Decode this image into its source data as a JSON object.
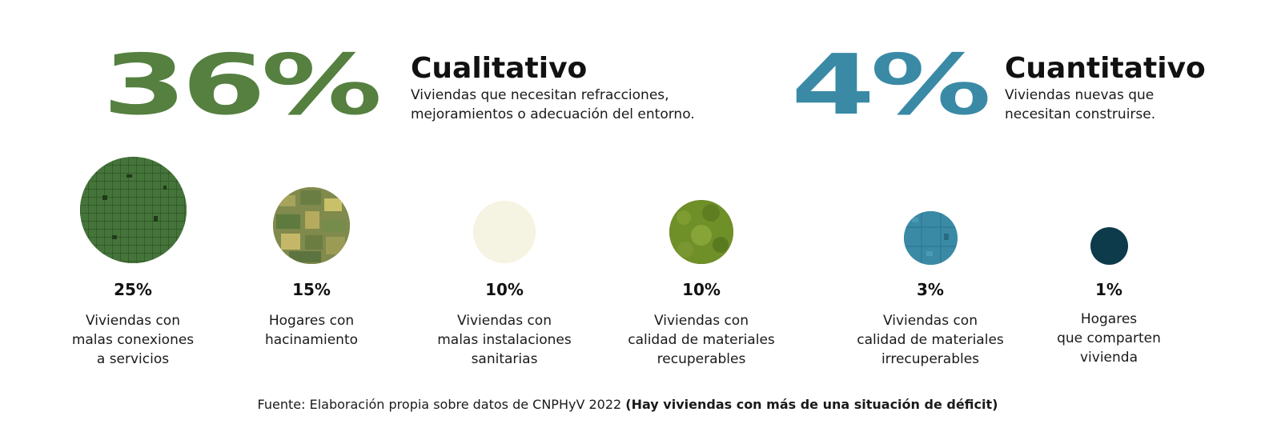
{
  "cualitativo": {
    "percent": "36%",
    "title": "Cualitativo",
    "desc": [
      "Viviendas que necesitan refracciones,",
      "mejoramientos o adecuación del entorno."
    ],
    "color": "#558040"
  },
  "cuantitativo": {
    "percent": "4%",
    "title": "Cuantitativo",
    "desc": [
      "Viviendas nuevas que",
      "necesitan construirse."
    ],
    "color": "#3a8aa6"
  },
  "items": [
    {
      "value": 25,
      "percent": "25%",
      "label": [
        "Viviendas con",
        "malas conexiones",
        "a servicios"
      ],
      "fill": "#3f6e30",
      "image": "city-grid-aerial"
    },
    {
      "value": 15,
      "percent": "15%",
      "label": [
        "Hogares con",
        "hacinamiento"
      ],
      "fill": "#8a8a4a",
      "image": "crowded-housing"
    },
    {
      "value": 10,
      "percent": "10%",
      "label": [
        "Viviendas con",
        "malas instalaciones",
        "sanitarias"
      ],
      "fill": "#f5f3e1",
      "image": ""
    },
    {
      "value": 10,
      "percent": "10%",
      "label": [
        "Viviendas con",
        "calidad de materiales",
        "recuperables"
      ],
      "fill": "#6f8f28",
      "image": "green-texture"
    },
    {
      "value": 3,
      "percent": "3%",
      "label": [
        "Viviendas con",
        "calidad de materiales",
        "irrecuperables"
      ],
      "fill": "#3a8aa6",
      "image": "blue-texture"
    },
    {
      "value": 1,
      "percent": "1%",
      "label": [
        "Hogares",
        "que comparten",
        "vivienda"
      ],
      "fill": "#0e3b4c",
      "image": ""
    }
  ],
  "source": {
    "text": "Fuente: Elaboración propia sobre datos de CNPHyV 2022 ",
    "bold": "(Hay viviendas con más de una situación de déficit)"
  }
}
